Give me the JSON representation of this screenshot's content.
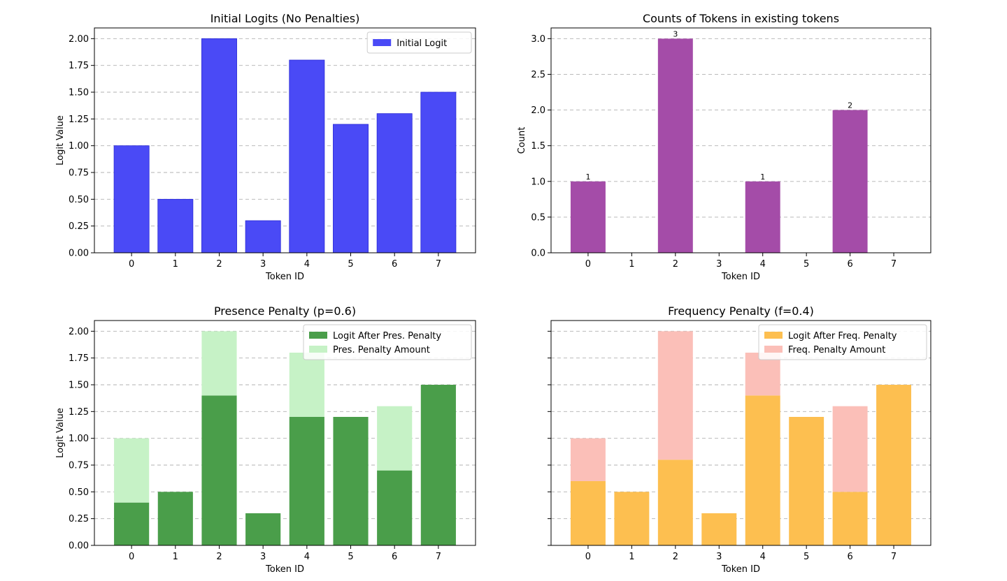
{
  "chart_data": [
    {
      "type": "bar",
      "title": "Initial Logits (No Penalties)",
      "xlabel": "Token ID",
      "ylabel": "Logit Value",
      "categories": [
        "0",
        "1",
        "2",
        "3",
        "4",
        "5",
        "6",
        "7"
      ],
      "ylim": [
        0,
        2.1
      ],
      "yticks": [
        "0.00",
        "0.25",
        "0.50",
        "0.75",
        "1.00",
        "1.25",
        "1.50",
        "1.75",
        "2.00"
      ],
      "grid": true,
      "legend_position": "top-right",
      "series": [
        {
          "name": "Initial Logit",
          "values": [
            1.0,
            0.5,
            2.0,
            0.3,
            1.8,
            1.2,
            1.3,
            1.5
          ],
          "color": "#4a4af6",
          "edge": "#2a2ad6"
        }
      ]
    },
    {
      "type": "bar",
      "title": "Counts of Tokens in existing tokens",
      "xlabel": "Token ID",
      "ylabel": "Count",
      "categories": [
        "0",
        "1",
        "2",
        "3",
        "4",
        "5",
        "6",
        "7"
      ],
      "ylim": [
        0,
        3.15
      ],
      "yticks": [
        "0.0",
        "0.5",
        "1.0",
        "1.5",
        "2.0",
        "2.5",
        "3.0"
      ],
      "grid": true,
      "series": [
        {
          "name": "Count",
          "values": [
            1,
            0,
            3,
            0,
            1,
            0,
            2,
            0
          ],
          "color": "#a44ca8"
        }
      ],
      "data_labels": [
        "1",
        "",
        "3",
        "",
        "1",
        "",
        "2",
        ""
      ]
    },
    {
      "type": "bar",
      "stacked": true,
      "title": "Presence Penalty (p=0.6)",
      "xlabel": "Token ID",
      "ylabel": "Logit Value",
      "categories": [
        "0",
        "1",
        "2",
        "3",
        "4",
        "5",
        "6",
        "7"
      ],
      "ylim": [
        0,
        2.1
      ],
      "yticks": [
        "0.00",
        "0.25",
        "0.50",
        "0.75",
        "1.00",
        "1.25",
        "1.50",
        "1.75",
        "2.00"
      ],
      "grid": true,
      "legend_position": "top-right",
      "series": [
        {
          "name": "Logit After Pres. Penalty",
          "values": [
            0.4,
            0.5,
            1.4,
            0.3,
            1.2,
            1.2,
            0.7,
            1.5
          ],
          "color": "#4a9e4a"
        },
        {
          "name": "Pres. Penalty Amount",
          "values": [
            0.6,
            0,
            0.6,
            0,
            0.6,
            0,
            0.6,
            0
          ],
          "color": "#c6f2c6"
        }
      ]
    },
    {
      "type": "bar",
      "stacked": true,
      "title": "Frequency Penalty (f=0.4)",
      "xlabel": "Token ID",
      "ylabel": "",
      "categories": [
        "0",
        "1",
        "2",
        "3",
        "4",
        "5",
        "6",
        "7"
      ],
      "ylim": [
        0,
        2.1
      ],
      "yticks": [
        "",
        "",
        "",
        "",
        "",
        "",
        "",
        "",
        ""
      ],
      "grid": true,
      "legend_position": "top-right",
      "series": [
        {
          "name": "Logit After Freq. Penalty",
          "values": [
            0.6,
            0.5,
            0.8,
            0.3,
            1.4,
            1.2,
            0.5,
            1.5
          ],
          "color": "#fdbf50"
        },
        {
          "name": "Freq. Penalty Amount",
          "values": [
            0.4,
            0,
            1.2,
            0,
            0.4,
            0,
            0.8,
            0
          ],
          "color": "#fbbfb8"
        }
      ]
    }
  ]
}
